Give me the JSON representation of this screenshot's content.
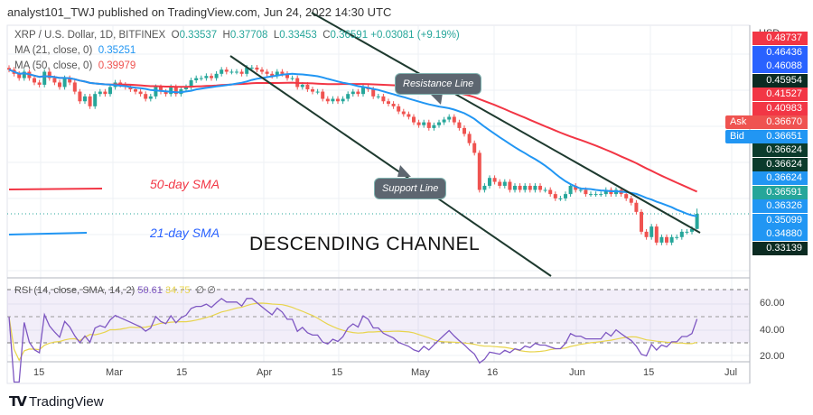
{
  "header": {
    "published": "analyst101_TWJ published on TradingView.com, Jun 24, 2022 14:30 UTC"
  },
  "legend": {
    "symbol": "XRP / U.S. Dollar, 1D, BITFINEX",
    "o_label": "O",
    "o": "0.33537",
    "h_label": "H",
    "h": "0.37708",
    "l_label": "L",
    "l": "0.33453",
    "c_label": "C",
    "c": "0.36591",
    "change": "+0.03081 (+9.19%)",
    "ma21_label": "MA (21, close, 0)",
    "ma21": "0.35251",
    "ma50_label": "MA (50, close, 0)",
    "ma50": "0.39979",
    "rsi_label": "RSI (14, close, SMA, 14, 2)",
    "rsi": "50.61",
    "rsi_sma": "34.75",
    "rsi_extra1": "∅",
    "rsi_extra2": "∅"
  },
  "price_axis": {
    "currency": "USD",
    "labels": [
      {
        "value": "0.48737",
        "color": "#f23645"
      },
      {
        "value": "0.46436",
        "color": "#2962ff"
      },
      {
        "value": "0.46088",
        "color": "#2962ff"
      },
      {
        "value": "0.45954",
        "color": "#0b2b22"
      },
      {
        "value": "0.41527",
        "color": "#f23645"
      },
      {
        "value": "0.40983",
        "color": "#f23645"
      },
      {
        "value": "0.36670",
        "color": "#ef5350",
        "tag": "Ask"
      },
      {
        "value": "0.36651",
        "color": "#2196f3",
        "tag": "Bid"
      },
      {
        "value": "0.36624",
        "color": "#0b3b2c"
      },
      {
        "value": "0.36624",
        "color": "#0b3b2c"
      },
      {
        "value": "0.36624",
        "color": "#2196f3"
      },
      {
        "value": "0.36591",
        "color": "#26a69a"
      },
      {
        "value": "0.36326",
        "color": "#2196f3"
      },
      {
        "value": "0.35099",
        "color": "#2196f3"
      },
      {
        "value": "0.34880",
        "color": "#2196f3"
      },
      {
        "value": "0.33139",
        "color": "#0b2b22"
      }
    ]
  },
  "rsi_axis": [
    "60.00",
    "40.00",
    "20.00"
  ],
  "time_axis": [
    "15",
    "Mar",
    "15",
    "Apr",
    "15",
    "May",
    "16",
    "Jun",
    "15",
    "Jul"
  ],
  "annotations": {
    "sma50": "50-day SMA",
    "sma21": "21-day SMA",
    "channel": "DESCENDING CHANNEL",
    "resistance": "Resistance Line",
    "support": "Support Line"
  },
  "footer": {
    "brand": "TradingView"
  },
  "chart_data": {
    "type": "candlestick",
    "symbol": "XRP/USD",
    "interval": "1D",
    "start_date": "2022-02-08",
    "end_date": "2022-06-24",
    "y_scale": "log",
    "closes": [
      0.84,
      0.82,
      0.8,
      0.83,
      0.8,
      0.78,
      0.77,
      0.83,
      0.8,
      0.78,
      0.76,
      0.8,
      0.78,
      0.74,
      0.7,
      0.72,
      0.68,
      0.73,
      0.74,
      0.73,
      0.76,
      0.78,
      0.77,
      0.76,
      0.75,
      0.74,
      0.73,
      0.71,
      0.72,
      0.76,
      0.74,
      0.73,
      0.76,
      0.73,
      0.75,
      0.76,
      0.79,
      0.8,
      0.8,
      0.81,
      0.8,
      0.82,
      0.84,
      0.83,
      0.83,
      0.83,
      0.82,
      0.85,
      0.85,
      0.84,
      0.83,
      0.82,
      0.81,
      0.83,
      0.82,
      0.8,
      0.8,
      0.76,
      0.77,
      0.75,
      0.74,
      0.74,
      0.71,
      0.7,
      0.71,
      0.7,
      0.71,
      0.73,
      0.74,
      0.73,
      0.76,
      0.75,
      0.72,
      0.72,
      0.7,
      0.69,
      0.68,
      0.66,
      0.65,
      0.64,
      0.62,
      0.61,
      0.62,
      0.6,
      0.61,
      0.62,
      0.63,
      0.64,
      0.62,
      0.6,
      0.58,
      0.55,
      0.52,
      0.42,
      0.43,
      0.45,
      0.44,
      0.43,
      0.44,
      0.42,
      0.43,
      0.42,
      0.43,
      0.42,
      0.43,
      0.42,
      0.42,
      0.41,
      0.4,
      0.4,
      0.41,
      0.43,
      0.42,
      0.42,
      0.41,
      0.41,
      0.41,
      0.41,
      0.42,
      0.41,
      0.42,
      0.41,
      0.4,
      0.39,
      0.37,
      0.33,
      0.32,
      0.34,
      0.31,
      0.32,
      0.31,
      0.32,
      0.32,
      0.33,
      0.33,
      0.33537,
      0.36591
    ],
    "last_ohlc": {
      "open": 0.33537,
      "high": 0.37708,
      "low": 0.33453,
      "close": 0.36591
    },
    "indicators": [
      "MA 21",
      "MA 50",
      "RSI 14 with SMA 14"
    ],
    "colors": {
      "up": "#26a69a",
      "down": "#ef5350",
      "ma21": "#2196f3",
      "ma50": "#f23645",
      "rsi": "#7e57c2",
      "rsi_sma": "#e8d44d"
    },
    "rsi_levels": [
      70,
      50,
      30
    ]
  }
}
